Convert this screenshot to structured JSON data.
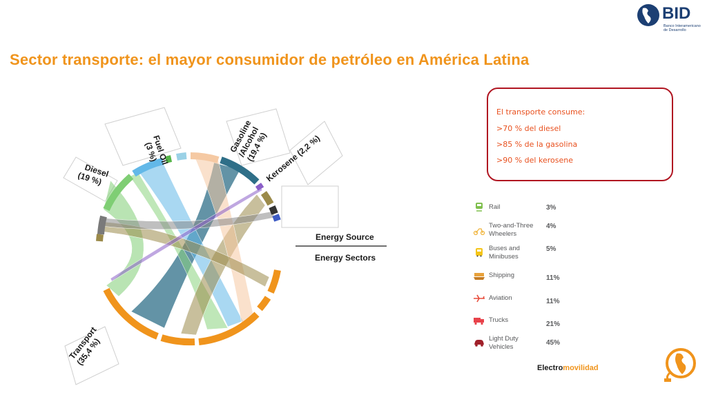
{
  "logo": {
    "name": "BID",
    "subtitle": "Banco Interamericano de Desarrollo"
  },
  "title": "Sector transporte: el mayor consumidor de petróleo en América Latina",
  "callout": {
    "heading": "El transporte consume:",
    "items": [
      ">70 % del diesel",
      ">85 % de la gasolina",
      ">90 % del kerosene"
    ]
  },
  "chord": {
    "labels": {
      "fuel_oil": [
        "Fuel Oil",
        "(3 %)"
      ],
      "gasoline": [
        "Gasoline",
        "/Alcohol",
        "(19,4 %)"
      ],
      "kerosene": "Kerosene (2,2 %)",
      "diesel": [
        "Diesel",
        "(19 %)"
      ],
      "transport": [
        "Transport",
        "(35,4 %)"
      ]
    },
    "legend": {
      "source": "Energy Source",
      "sectors": "Energy Sectors"
    }
  },
  "modes": [
    {
      "label": "Rail",
      "value": "3%",
      "icon": "train-icon"
    },
    {
      "label": "Two-and-Three Wheelers",
      "value": "4%",
      "icon": "scooter-icon"
    },
    {
      "label": "Buses and Minibuses",
      "value": "5%",
      "icon": "bus-icon"
    },
    {
      "label": "Shipping",
      "value": "11%",
      "icon": "ship-icon"
    },
    {
      "label": "Aviation",
      "value": "11%",
      "icon": "airplane-icon"
    },
    {
      "label": "Trucks",
      "value": "21%",
      "icon": "truck-icon"
    },
    {
      "label": "Light Duty Vehicles",
      "value": "45%",
      "icon": "car-icon"
    }
  ],
  "footer": {
    "electro": "Electro",
    "movilidad": "movilidad"
  },
  "colors": {
    "title": "#f0941c",
    "callout_border": "#b01521",
    "callout_text": "#e8501e",
    "transport": "#f0941c",
    "diesel": "#8bd37e",
    "gasoline": "#3f7f97",
    "kerosene": "#9b8a4a",
    "fuel_oil": "#62b8e8"
  }
}
